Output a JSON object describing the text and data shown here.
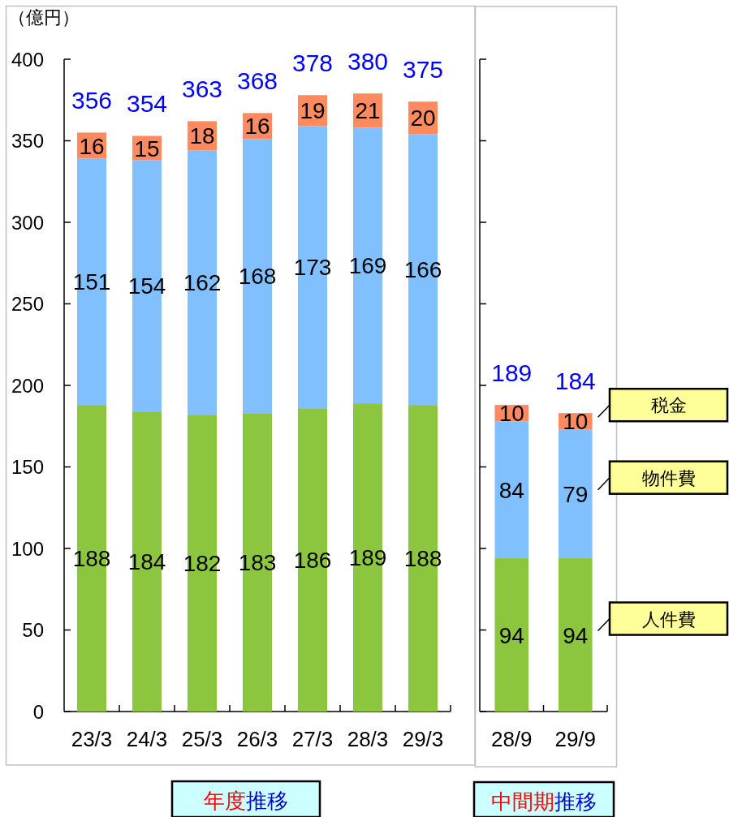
{
  "chart_data": [
    {
      "type": "bar",
      "stacked": true,
      "ylabel": "（億円）",
      "xlabel": "年度推移",
      "categories": [
        "23/3",
        "24/3",
        "25/3",
        "26/3",
        "27/3",
        "28/3",
        "29/3"
      ],
      "series": [
        {
          "color": "#8cc63f",
          "values": [
            188,
            184,
            182,
            183,
            186,
            189,
            188
          ]
        },
        {
          "color": "#80c0ff",
          "values": [
            151,
            154,
            162,
            168,
            173,
            169,
            166
          ]
        },
        {
          "color": "#ff8a60",
          "values": [
            16,
            15,
            18,
            16,
            19,
            21,
            20
          ]
        }
      ],
      "ylim": [
        0,
        400
      ],
      "yticks": [
        0,
        50,
        100,
        150,
        200,
        250,
        300,
        350,
        400
      ],
      "data_labels": true,
      "totals": [
        "356",
        "354",
        "363",
        "368",
        "378",
        "380",
        "375"
      ]
    },
    {
      "type": "bar",
      "stacked": true,
      "xlabel": "中間期推移",
      "categories": [
        "28/9",
        "29/9"
      ],
      "series": [
        {
          "name": "人件費",
          "color": "#8cc63f",
          "values": [
            94,
            94
          ]
        },
        {
          "name": "物件費",
          "color": "#80c0ff",
          "values": [
            84,
            79
          ]
        },
        {
          "name": "税金",
          "color": "#ff8a60",
          "values": [
            10,
            10
          ]
        }
      ],
      "ylim": [
        0,
        400
      ],
      "yticks": [
        0,
        50,
        100,
        150,
        200,
        250,
        300,
        350,
        400
      ],
      "tick_labels": "x",
      "data_labels": true,
      "totals": [
        "189",
        "184"
      ],
      "legend": "right"
    }
  ]
}
